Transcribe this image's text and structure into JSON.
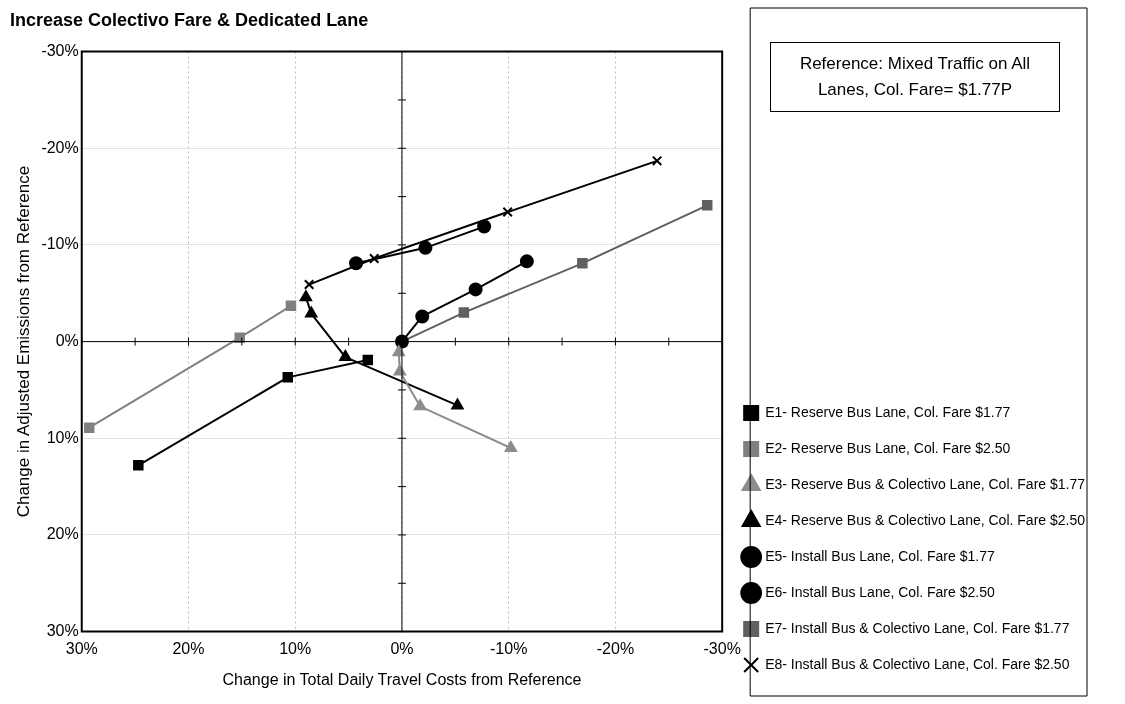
{
  "chart_data": {
    "type": "line",
    "title": "Increase Colectivo Fare & Dedicated Lane",
    "xlabel": "Change in Total Daily Travel Costs from Reference",
    "ylabel": "Change in Adjusted Emissions from Reference",
    "annotations": [
      "Reference: Mixed Traffic on All Lanes, Col. Fare= $1.77P"
    ],
    "xlim": [
      30,
      -30
    ],
    "ylim": [
      30,
      -30
    ],
    "xticks": [
      {
        "value": 30,
        "label": "30%"
      },
      {
        "value": 20,
        "label": "20%"
      },
      {
        "value": 10,
        "label": "10%"
      },
      {
        "value": 0,
        "label": "0%"
      },
      {
        "value": -10,
        "label": "-10%"
      },
      {
        "value": -20,
        "label": "-20%"
      },
      {
        "value": -30,
        "label": "-30%"
      }
    ],
    "yticks": [
      {
        "value": -30,
        "label": "-30%"
      },
      {
        "value": -20,
        "label": "-20%"
      },
      {
        "value": -10,
        "label": "-10%"
      },
      {
        "value": 0,
        "label": "0%"
      },
      {
        "value": 10,
        "label": "10%"
      },
      {
        "value": 20,
        "label": "20%"
      },
      {
        "value": 30,
        "label": "30%"
      }
    ],
    "grid": true,
    "legend": "right",
    "series": [
      {
        "name": "E1- Reserve Bus Lane, Col. Fare $1.77",
        "color": "#000000",
        "marker": "square",
        "x": [
          24.7,
          10.7,
          3.2
        ],
        "values": [
          12.8,
          3.7,
          1.9
        ]
      },
      {
        "name": "E2- Reserve Bus Lane, Col. Fare $2.50",
        "color": "#808080",
        "marker": "square",
        "x": [
          29.3,
          15.2,
          10.4
        ],
        "values": [
          8.9,
          -0.4,
          -3.7
        ]
      },
      {
        "name": "E3- Reserve Bus & Colectivo Lane, Col. Fare $1.77",
        "color": "#8c8c8c",
        "marker": "triangle",
        "x": [
          0.3,
          0.2,
          -1.7,
          -10.2
        ],
        "values": [
          1.1,
          3.1,
          6.7,
          11.0
        ]
      },
      {
        "name": "E4- Reserve Bus & Colectivo Lane, Col. Fare $2.50",
        "color": "#000000",
        "marker": "triangle",
        "x": [
          9.0,
          8.5,
          5.3,
          -5.2
        ],
        "values": [
          -4.6,
          -2.9,
          1.6,
          6.6
        ]
      },
      {
        "name": "E5- Install Bus Lane, Col. Fare $1.77",
        "color": "#000000",
        "marker": "circle",
        "x": [
          0,
          -1.9,
          -6.9,
          -11.7
        ],
        "values": [
          0,
          -2.6,
          -5.4,
          -8.3
        ]
      },
      {
        "name": "E6- Install Bus Lane, Col. Fare $2.50",
        "color": "#000000",
        "marker": "circle",
        "x": [
          4.3,
          -2.2,
          -7.7
        ],
        "values": [
          -8.1,
          -9.7,
          -11.9
        ]
      },
      {
        "name": "E7- Install Bus & Colectivo Lane, Col. Fare $1.77",
        "color": "#606060",
        "marker": "square",
        "x": [
          0,
          -5.8,
          -16.9,
          -28.6
        ],
        "values": [
          0,
          -3.0,
          -8.1,
          -14.1
        ]
      },
      {
        "name": "E8- Install Bus & Colectivo Lane, Col. Fare $2.50",
        "color": "#000000",
        "marker": "cross",
        "x": [
          8.7,
          2.6,
          -9.9,
          -23.9
        ],
        "values": [
          -5.9,
          -8.6,
          -13.4,
          -18.7
        ]
      }
    ]
  }
}
